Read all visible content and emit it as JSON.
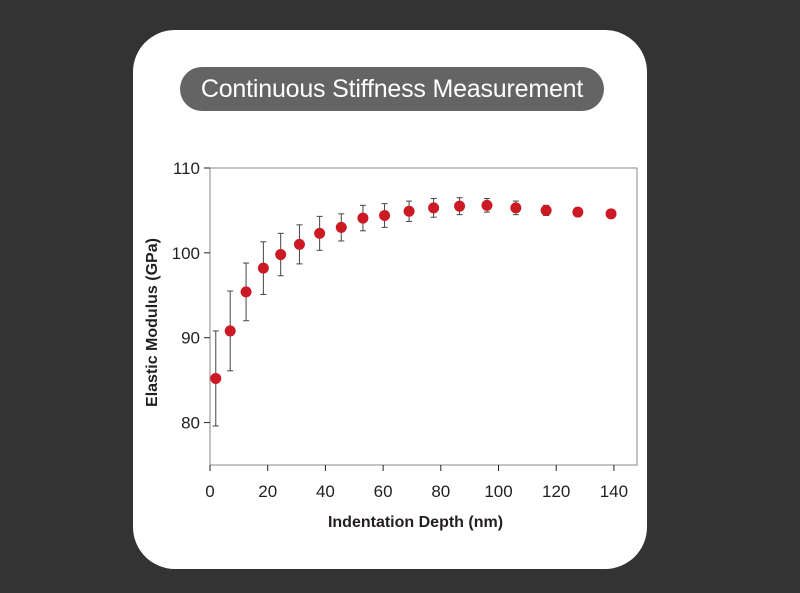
{
  "chart_data": {
    "type": "scatter",
    "title": "Continuous Stiffness Measurement",
    "xlabel": "Indentation Depth (nm)",
    "ylabel": "Elastic Modulus (GPa)",
    "xlim": [
      0,
      148
    ],
    "ylim": [
      75,
      110
    ],
    "xticks": [
      0,
      20,
      40,
      60,
      80,
      100,
      120,
      140
    ],
    "yticks": [
      80,
      90,
      100,
      110
    ],
    "grid": false,
    "colors": {
      "marker": "#cc1a24",
      "errorbar": "#444444",
      "frame": "#888888"
    },
    "series": [
      {
        "name": "Elastic Modulus",
        "x": [
          2,
          7,
          12.5,
          18.5,
          24.5,
          31,
          38,
          45.5,
          53,
          60.5,
          69,
          77.5,
          86.5,
          96,
          106,
          116.5,
          127.5,
          139
        ],
        "y": [
          85.2,
          90.8,
          95.4,
          98.2,
          99.8,
          101.0,
          102.3,
          103.0,
          104.1,
          104.4,
          104.9,
          105.3,
          105.5,
          105.6,
          105.3,
          105.0,
          104.8,
          104.6
        ],
        "error": [
          5.6,
          4.7,
          3.4,
          3.1,
          2.5,
          2.3,
          2.0,
          1.6,
          1.5,
          1.4,
          1.2,
          1.1,
          1.0,
          0.8,
          0.8,
          0.6,
          0.5,
          0.5
        ]
      }
    ]
  }
}
